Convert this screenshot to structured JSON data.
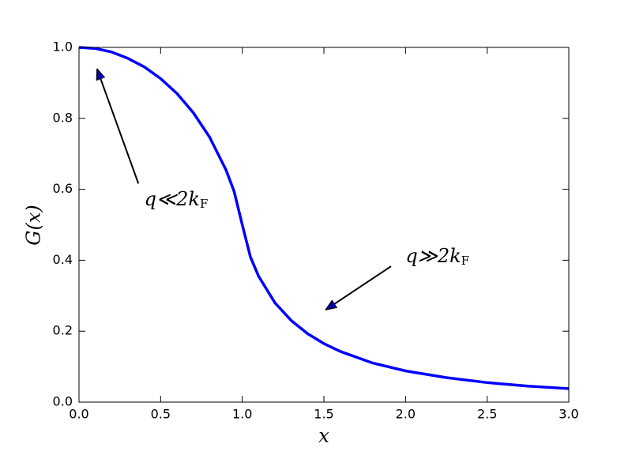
{
  "chart_data": {
    "type": "line",
    "xlabel": "x",
    "ylabel": "G(x)",
    "x": [
      0,
      0.1,
      0.2,
      0.3,
      0.4,
      0.5,
      0.6,
      0.7,
      0.8,
      0.9,
      0.95,
      1.0,
      1.05,
      1.1,
      1.2,
      1.3,
      1.4,
      1.5,
      1.6,
      1.8,
      2.0,
      2.25,
      2.5,
      2.75,
      3.0
    ],
    "series": [
      {
        "color": "#0000ff",
        "values": [
          1.0,
          0.997,
          0.987,
          0.969,
          0.945,
          0.912,
          0.87,
          0.816,
          0.747,
          0.655,
          0.594,
          0.5,
          0.409,
          0.355,
          0.28,
          0.23,
          0.193,
          0.165,
          0.143,
          0.11,
          0.088,
          0.069,
          0.055,
          0.045,
          0.038
        ]
      }
    ],
    "xlim": [
      0,
      3
    ],
    "ylim": [
      0,
      1
    ],
    "xticks": [
      {
        "value": 0,
        "label": "0.0"
      },
      {
        "value": 0.5,
        "label": "0.5"
      },
      {
        "value": 1,
        "label": "1.0"
      },
      {
        "value": 1.5,
        "label": "1.5"
      },
      {
        "value": 2,
        "label": "2.0"
      },
      {
        "value": 2.5,
        "label": "2.5"
      },
      {
        "value": 3,
        "label": "3.0"
      }
    ],
    "yticks": [
      {
        "value": 0,
        "label": "0.0"
      },
      {
        "value": 0.2,
        "label": "0.2"
      },
      {
        "value": 0.4,
        "label": "0.4"
      },
      {
        "value": 0.6,
        "label": "0.6"
      },
      {
        "value": 0.8,
        "label": "0.8"
      },
      {
        "value": 1,
        "label": "1.0"
      }
    ],
    "grid": false,
    "annotations": [
      {
        "text": "q≪2k",
        "subscript": "F",
        "xy": [
          0.11,
          0.94
        ],
        "xytext": [
          0.4,
          0.57
        ]
      },
      {
        "text": "q≫2k",
        "subscript": "F",
        "xy": [
          1.51,
          0.26
        ],
        "xytext": [
          2.0,
          0.41
        ]
      }
    ]
  }
}
